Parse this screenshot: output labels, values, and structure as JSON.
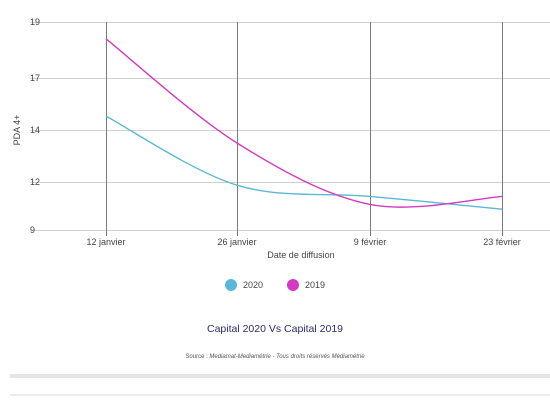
{
  "chart_data": {
    "type": "line",
    "title": "Capital 2020 Vs Capital 2019",
    "xlabel": "Date de diffusion",
    "ylabel": "PDA 4+",
    "x_ticks": [
      "12 janvier",
      "26 janvier",
      "9 février",
      "23 février"
    ],
    "y_ticks": [
      "19",
      "17",
      "14",
      "12",
      "9"
    ],
    "ylim": [
      9,
      19
    ],
    "grid": true,
    "legend_position": "bottom",
    "series": [
      {
        "name": "2020",
        "color": "#5bb8d8",
        "values": [
          {
            "x": "12 janvier",
            "y": 14.8
          },
          {
            "x": "26 janvier",
            "y": 11.8
          },
          {
            "x": "9 février",
            "y": 11.1
          },
          {
            "x": "23 février",
            "y": 10.3
          }
        ]
      },
      {
        "name": "2019",
        "color": "#d23bc0",
        "values": [
          {
            "x": "12 janvier",
            "y": 18.4
          },
          {
            "x": "26 janvier",
            "y": 13.5
          },
          {
            "x": "9 février",
            "y": 10.6
          },
          {
            "x": "23 février",
            "y": 11.1
          }
        ]
      }
    ]
  },
  "source": {
    "prefix": "Source : ",
    "text": "Mediamat-Mediamétrie - Tous droits réservés Médiamétrie"
  }
}
